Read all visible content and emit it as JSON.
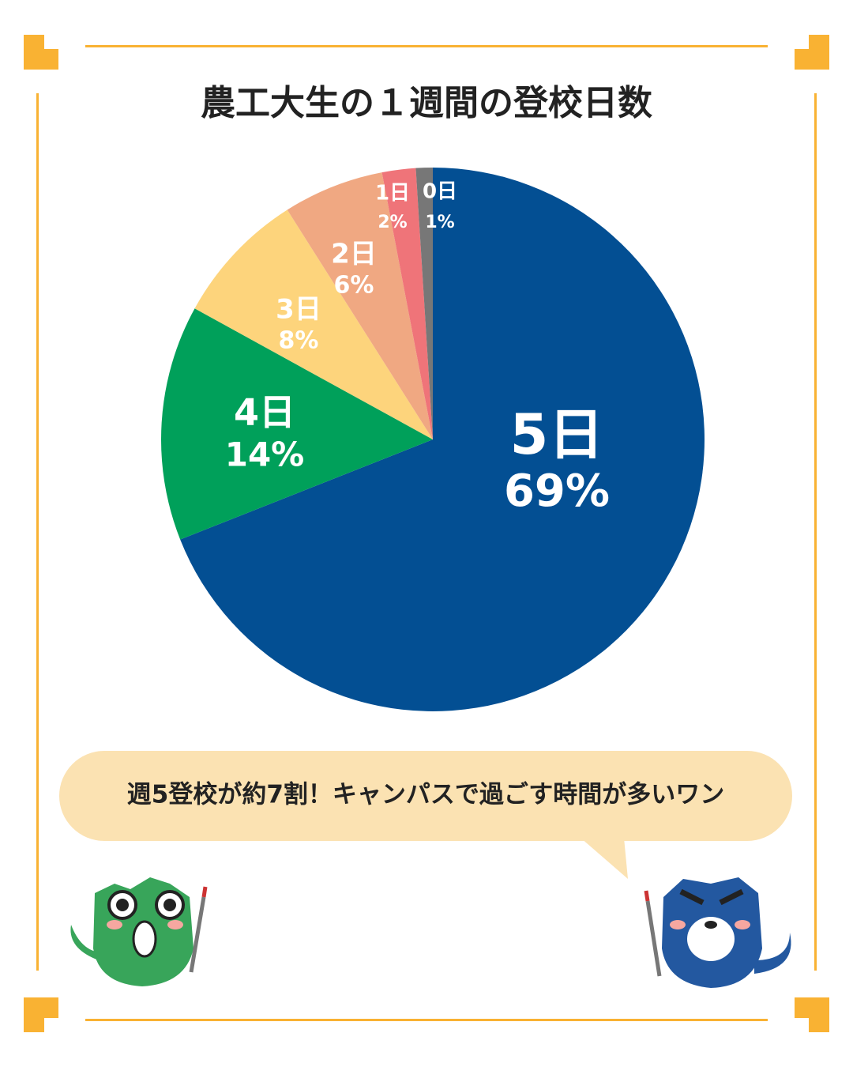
{
  "chart_data": {
    "type": "pie",
    "title": "農工大生の１週間の登校日数",
    "categories": [
      "5日",
      "4日",
      "3日",
      "2日",
      "1日",
      "0日"
    ],
    "values": [
      69,
      14,
      8,
      6,
      2,
      1
    ],
    "value_labels": [
      "69%",
      "14%",
      "8%",
      "6%",
      "2%",
      "1%"
    ],
    "colors": [
      "#034f93",
      "#00a05a",
      "#fdd47c",
      "#f0a882",
      "#ef7479",
      "#777777"
    ],
    "annotation": "週5登校が約7割！キャンパスで過ごす時間が多いワン"
  }
}
